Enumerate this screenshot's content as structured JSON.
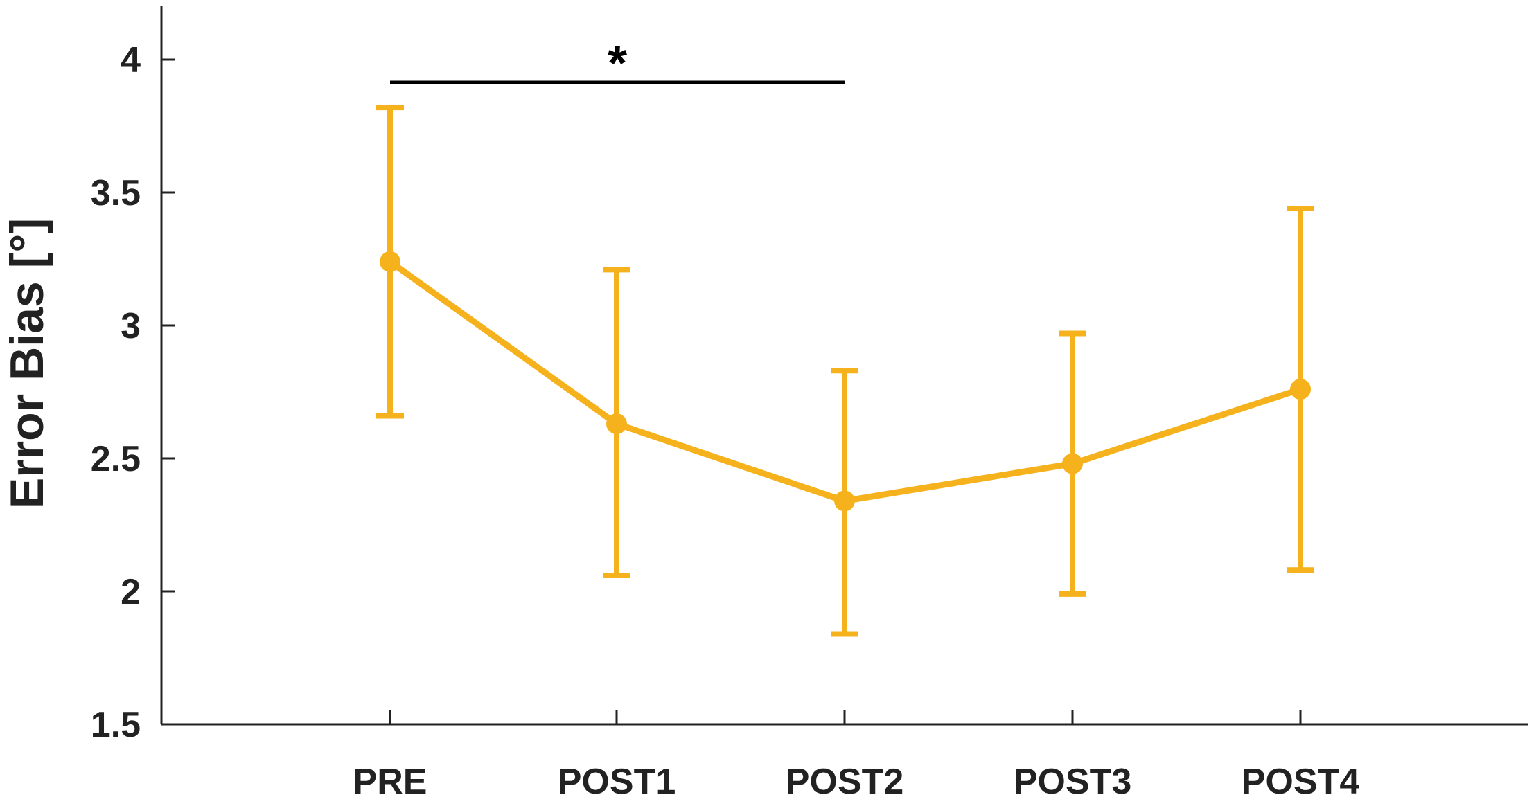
{
  "chart_data": {
    "type": "line",
    "categories": [
      "PRE",
      "POST1",
      "POST2",
      "POST3",
      "POST4"
    ],
    "series": [
      {
        "values": [
          3.24,
          2.63,
          2.34,
          2.48,
          2.76
        ],
        "error_low": [
          2.66,
          2.06,
          1.84,
          1.99,
          2.08
        ],
        "error_high": [
          3.82,
          3.21,
          2.83,
          2.97,
          3.44
        ]
      }
    ],
    "xlabel": "",
    "ylabel": "Error Bias [°]",
    "ylim": [
      1.5,
      4.2
    ],
    "yticks": [
      1.5,
      2,
      2.5,
      3,
      3.5,
      4
    ],
    "ytick_labels": [
      "1.5",
      "2",
      "2.5",
      "3",
      "3.5",
      "4"
    ],
    "grid": false,
    "significance": {
      "from": "PRE",
      "to": "POST2",
      "label": "*"
    },
    "colors": {
      "series": "#F5B21C",
      "axis": "#222222",
      "significance": "#000000"
    }
  }
}
